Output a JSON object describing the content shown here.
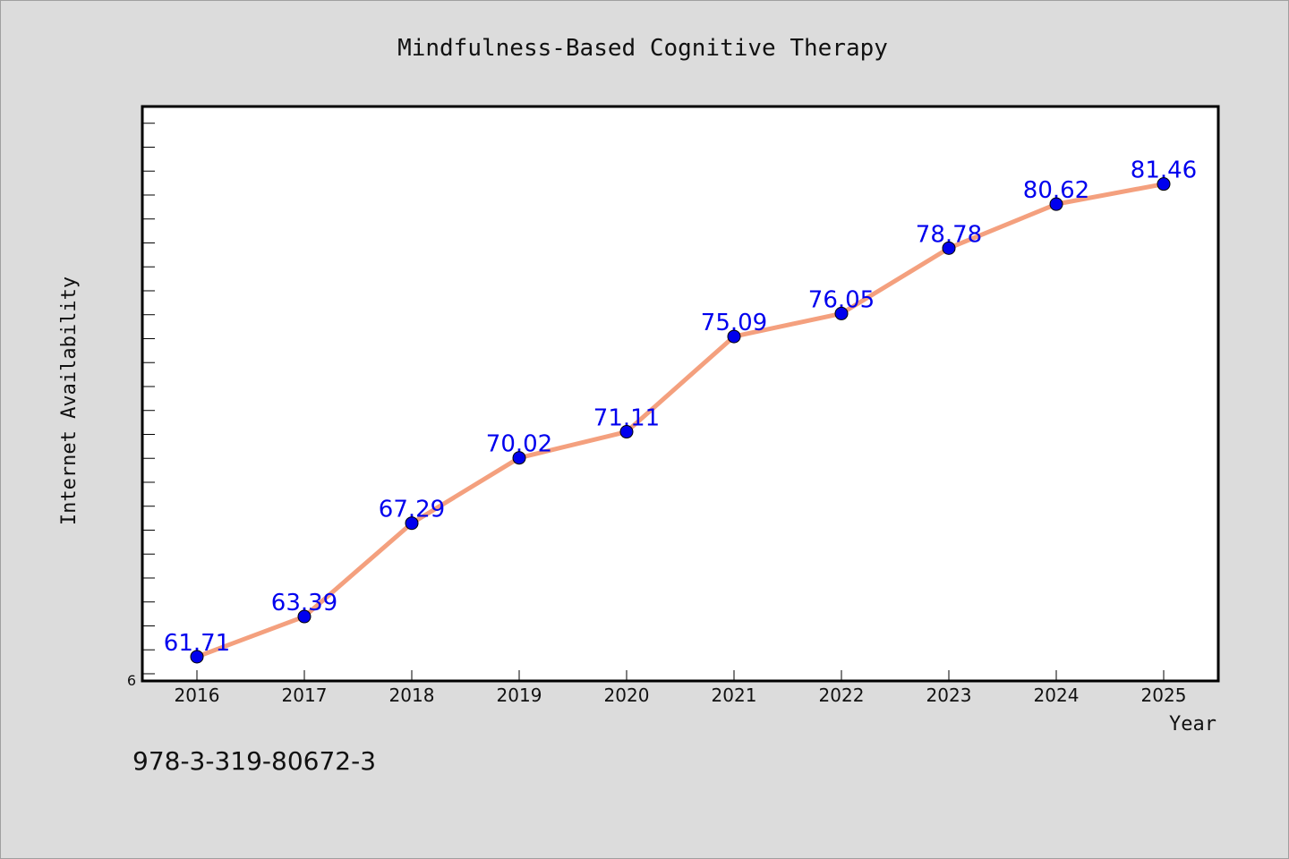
{
  "chart_data": {
    "type": "line",
    "title": "Mindfulness-Based Cognitive Therapy",
    "xlabel": "Year",
    "ylabel": "Internet Availability",
    "x": [
      "2016",
      "2017",
      "2018",
      "2019",
      "2020",
      "2021",
      "2022",
      "2023",
      "2024",
      "2025"
    ],
    "series": [
      {
        "values": [
          61.71,
          63.39,
          67.29,
          70.02,
          71.11,
          75.09,
          76.05,
          78.78,
          80.62,
          81.46
        ]
      }
    ],
    "data_labels": [
      "61.71",
      "63.39",
      "67.29",
      "70.02",
      "71.11",
      "75.09",
      "76.05",
      "78.78",
      "80.62",
      "81.46"
    ],
    "ylim": [
      60.7,
      84.7
    ],
    "y_tick_label": "6",
    "grid": false,
    "legend": "none",
    "colors": {
      "line": "#f4a07e",
      "marker": "#0000ee",
      "data_label": "#0000ee",
      "plot_background": "#ffffff",
      "page_background": "#dcdcdc"
    }
  },
  "footer": {
    "isbn": "978-3-319-80672-3"
  }
}
